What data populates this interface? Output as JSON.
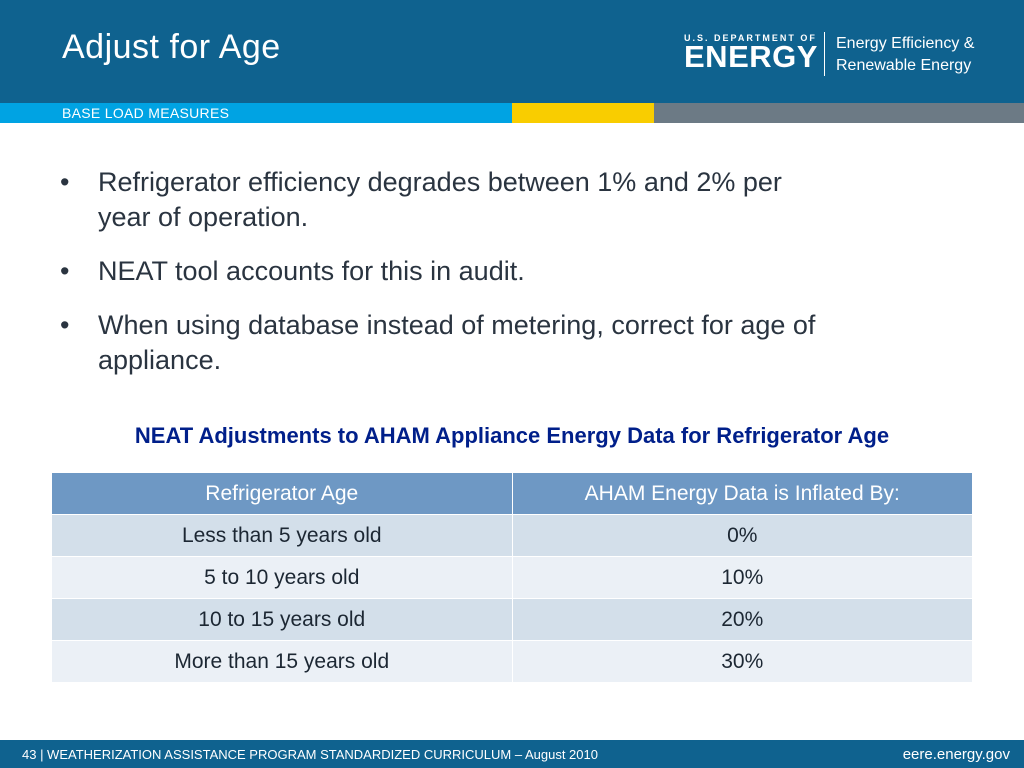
{
  "header": {
    "title": "Adjust for Age",
    "doe_small": "U.S. DEPARTMENT OF",
    "doe_big": "ENERGY",
    "eere_line1": "Energy Efficiency &",
    "eere_line2": "Renewable Energy"
  },
  "section_label": "BASE LOAD MEASURES",
  "bullets": [
    "Refrigerator efficiency degrades between 1% and 2% per year of operation.",
    "NEAT tool accounts for this in audit.",
    "When using database instead of metering, correct for age of appliance."
  ],
  "table": {
    "title": "NEAT Adjustments to AHAM Appliance Energy Data for Refrigerator Age",
    "headers": [
      "Refrigerator Age",
      "AHAM Energy Data is Inflated By:"
    ],
    "rows": [
      [
        "Less than 5 years old",
        "0%"
      ],
      [
        "5 to 10 years old",
        "10%"
      ],
      [
        "10 to 15 years old",
        "20%"
      ],
      [
        "More than 15 years old",
        "30%"
      ]
    ]
  },
  "footer": {
    "left": "43 | WEATHERIZATION ASSISTANCE PROGRAM STANDARDIZED CURRICULUM – August 2010",
    "right": "eere.energy.gov"
  },
  "colors": {
    "header_blue": "#0f628f",
    "band_blue": "#00a3e3",
    "band_yellow": "#f9cd00",
    "band_gray": "#6c7a85",
    "table_header": "#6e98c4",
    "table_title": "#001f8a"
  }
}
